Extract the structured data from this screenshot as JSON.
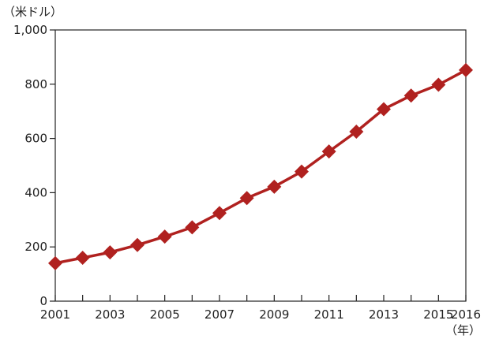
{
  "chart_data": {
    "type": "line",
    "x": [
      2001,
      2002,
      2003,
      2004,
      2005,
      2006,
      2007,
      2008,
      2009,
      2010,
      2011,
      2012,
      2013,
      2014,
      2015,
      2016
    ],
    "series": [
      {
        "values": [
          140,
          160,
          180,
          207,
          238,
          272,
          325,
          380,
          422,
          478,
          552,
          625,
          708,
          758,
          798,
          852
        ]
      }
    ],
    "x_tick_labels": [
      "2001",
      "2003",
      "2005",
      "2007",
      "2009",
      "2011",
      "2013",
      "2015",
      "2016"
    ],
    "y_ticks": [
      0,
      200,
      400,
      600,
      800,
      1000
    ],
    "y_tick_labels": [
      "0",
      "200",
      "400",
      "600",
      "800",
      "1,000"
    ],
    "ylim": [
      0,
      1000
    ],
    "xlim": [
      2001,
      2016
    ],
    "ylabel": "（米ドル）",
    "xlabel": "（年）",
    "grid": false,
    "legend": "none",
    "colors": {
      "series": "#b0211f",
      "axis": "#222222"
    }
  }
}
